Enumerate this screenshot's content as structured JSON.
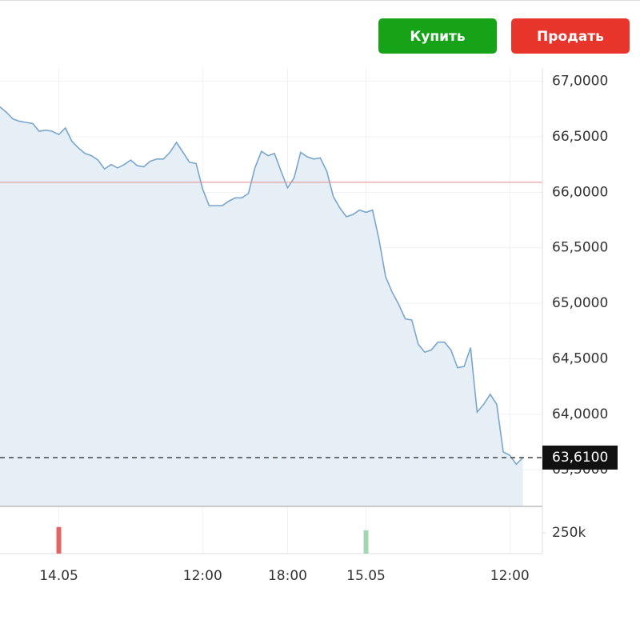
{
  "buttons": [
    {
      "label": "Купить",
      "color": "#17a317"
    },
    {
      "label": "Продать",
      "color": "#e8352b"
    }
  ],
  "chart_data": {
    "type": "area",
    "color": "#7aa6cb",
    "fill": "#e6eef6",
    "categories": [
      null,
      null,
      null,
      null,
      null,
      null,
      null,
      null,
      null,
      "14.05",
      null,
      null,
      null,
      null,
      null,
      null,
      null,
      null,
      null,
      null,
      null,
      null,
      null,
      null,
      null,
      null,
      null,
      null,
      null,
      null,
      null,
      "12:00",
      null,
      null,
      null,
      null,
      null,
      null,
      null,
      null,
      null,
      null,
      null,
      null,
      "18:00",
      null,
      null,
      null,
      null,
      null,
      null,
      null,
      null,
      null,
      null,
      null,
      "15.05",
      null,
      null,
      null,
      null,
      null,
      null,
      null,
      null,
      null,
      null,
      null,
      null,
      null,
      null,
      null,
      null,
      null,
      null,
      null,
      null,
      null,
      "12:00",
      null,
      null
    ],
    "values": [
      66.77,
      66.72,
      66.66,
      66.64,
      66.63,
      66.62,
      66.55,
      66.56,
      66.55,
      66.52,
      66.58,
      66.46,
      66.4,
      66.35,
      66.33,
      66.29,
      66.21,
      66.25,
      66.22,
      66.25,
      66.29,
      66.24,
      66.23,
      66.28,
      66.3,
      66.3,
      66.36,
      66.45,
      66.36,
      66.27,
      66.26,
      66.03,
      65.88,
      65.88,
      65.88,
      65.92,
      65.95,
      65.95,
      65.99,
      66.22,
      66.37,
      66.33,
      66.35,
      66.19,
      66.04,
      66.13,
      66.36,
      66.32,
      66.3,
      66.31,
      66.19,
      65.96,
      65.86,
      65.78,
      65.8,
      65.84,
      65.82,
      65.84,
      65.57,
      65.24,
      65.1,
      64.99,
      64.86,
      64.85,
      64.63,
      64.56,
      64.58,
      64.65,
      64.65,
      64.58,
      64.42,
      64.43,
      64.6,
      64.02,
      64.09,
      64.18,
      64.09,
      63.66,
      63.63,
      63.55,
      63.61
    ],
    "ylim": [
      63.17,
      67.12
    ],
    "yticks": [
      {
        "value": 67,
        "label": "67,0000"
      },
      {
        "value": 66.5,
        "label": "66,5000"
      },
      {
        "value": 66,
        "label": "66,0000"
      },
      {
        "value": 65.5,
        "label": "65,5000"
      },
      {
        "value": 65,
        "label": "65,0000"
      },
      {
        "value": 64.5,
        "label": "64,5000"
      },
      {
        "value": 64,
        "label": "64,0000"
      },
      {
        "value": 63.5,
        "label": "63,5000"
      }
    ],
    "grid": true,
    "reference_line": {
      "value": 66.09,
      "color": "#e88a8a"
    },
    "current_price": {
      "value": 63.61,
      "label": "63,6100"
    },
    "volume": {
      "ylim": [
        0,
        567000
      ],
      "yticks": [
        {
          "value": 250000,
          "label": "250k"
        }
      ],
      "series": [
        {
          "color": "#e06666",
          "values": [
            null,
            null,
            null,
            null,
            null,
            null,
            null,
            null,
            null,
            320000,
            null,
            null,
            null,
            null,
            null,
            null,
            null,
            null,
            null,
            null,
            null,
            null,
            null,
            null,
            null,
            null,
            null,
            null,
            null,
            null,
            null,
            null,
            null,
            null,
            null,
            null,
            null,
            null,
            null,
            null,
            null,
            null,
            null,
            null,
            null,
            null,
            null,
            null,
            null,
            null,
            null,
            null,
            null,
            null,
            null,
            null,
            null,
            null,
            null,
            null,
            null,
            null,
            null,
            null,
            null,
            null,
            null,
            null,
            null,
            null,
            null,
            null,
            null,
            null,
            null,
            null,
            null,
            null,
            null,
            null,
            null
          ]
        },
        {
          "color": "#a3d6b3",
          "values": [
            null,
            null,
            null,
            null,
            null,
            null,
            null,
            null,
            null,
            null,
            null,
            null,
            null,
            null,
            null,
            null,
            null,
            null,
            null,
            null,
            null,
            null,
            null,
            null,
            null,
            null,
            null,
            null,
            null,
            null,
            null,
            null,
            null,
            null,
            null,
            null,
            null,
            null,
            null,
            null,
            null,
            null,
            null,
            null,
            null,
            null,
            null,
            null,
            null,
            null,
            null,
            null,
            null,
            null,
            null,
            null,
            280000,
            null,
            null,
            null,
            null,
            null,
            null,
            null,
            null,
            null,
            null,
            null,
            null,
            null,
            null,
            null,
            null,
            null,
            null,
            null,
            null,
            null,
            null,
            null,
            null
          ]
        }
      ]
    }
  }
}
